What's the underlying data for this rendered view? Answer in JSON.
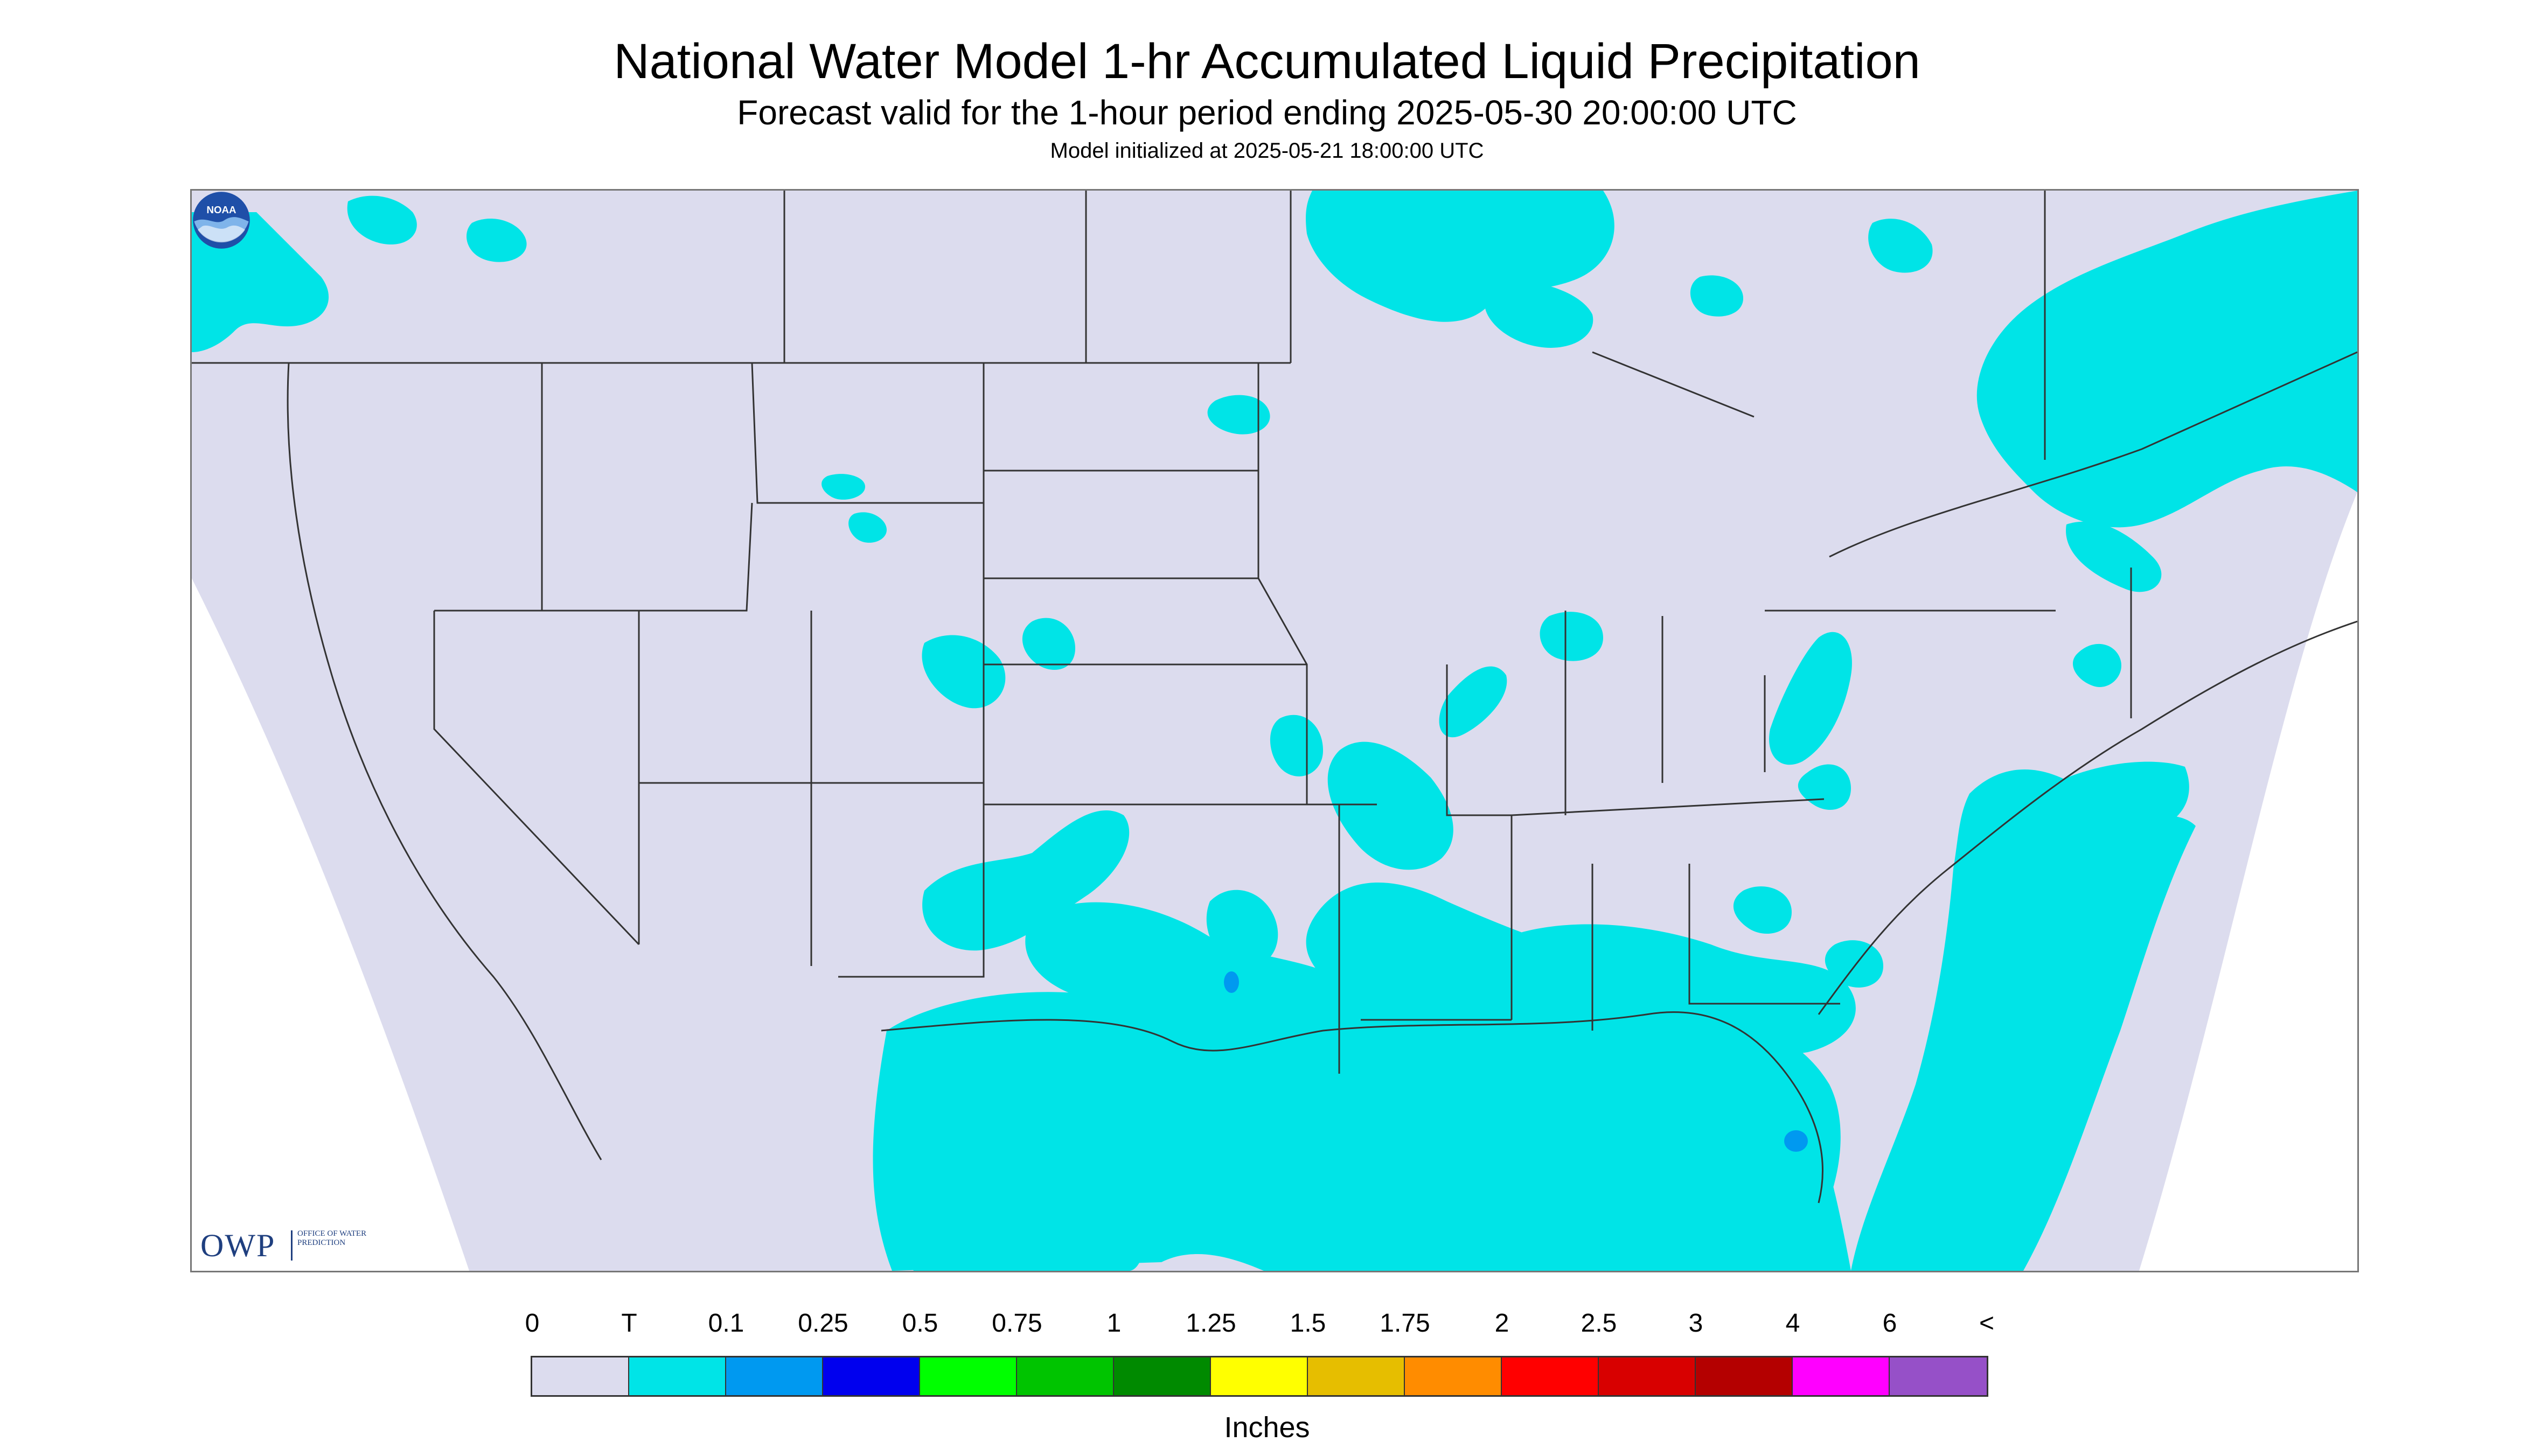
{
  "header": {
    "title": "National Water Model 1-hr Accumulated Liquid Precipitation",
    "subtitle": "Forecast valid for the 1-hour period ending 2025-05-30 20:00:00 UTC",
    "init": "Model initialized at 2025-05-21 18:00:00 UTC"
  },
  "logos": {
    "owp_letters": "OWP",
    "owp_text": "Office of Water Prediction",
    "noaa_text": "NOAA"
  },
  "legend": {
    "units": "Inches",
    "tick_labels": [
      "0",
      "T",
      "0.1",
      "0.25",
      "0.5",
      "0.75",
      "1",
      "1.25",
      "1.5",
      "1.75",
      "2",
      "2.5",
      "3",
      "4",
      "6",
      "<"
    ],
    "colors": [
      "#dcdcee",
      "#00e4e7",
      "#0099f0",
      "#0000ee",
      "#00ff00",
      "#00c400",
      "#008a00",
      "#ffff00",
      "#e6be00",
      "#ff8c00",
      "#ff0000",
      "#d80000",
      "#b40000",
      "#ff00ff",
      "#9650c8"
    ]
  },
  "map": {
    "background_color": "#dcdcee",
    "trace_color": "#00e4e7",
    "light_rain_color": "#0099f0",
    "outside_domain_color": "#ffffff",
    "line_color": "#333333"
  }
}
